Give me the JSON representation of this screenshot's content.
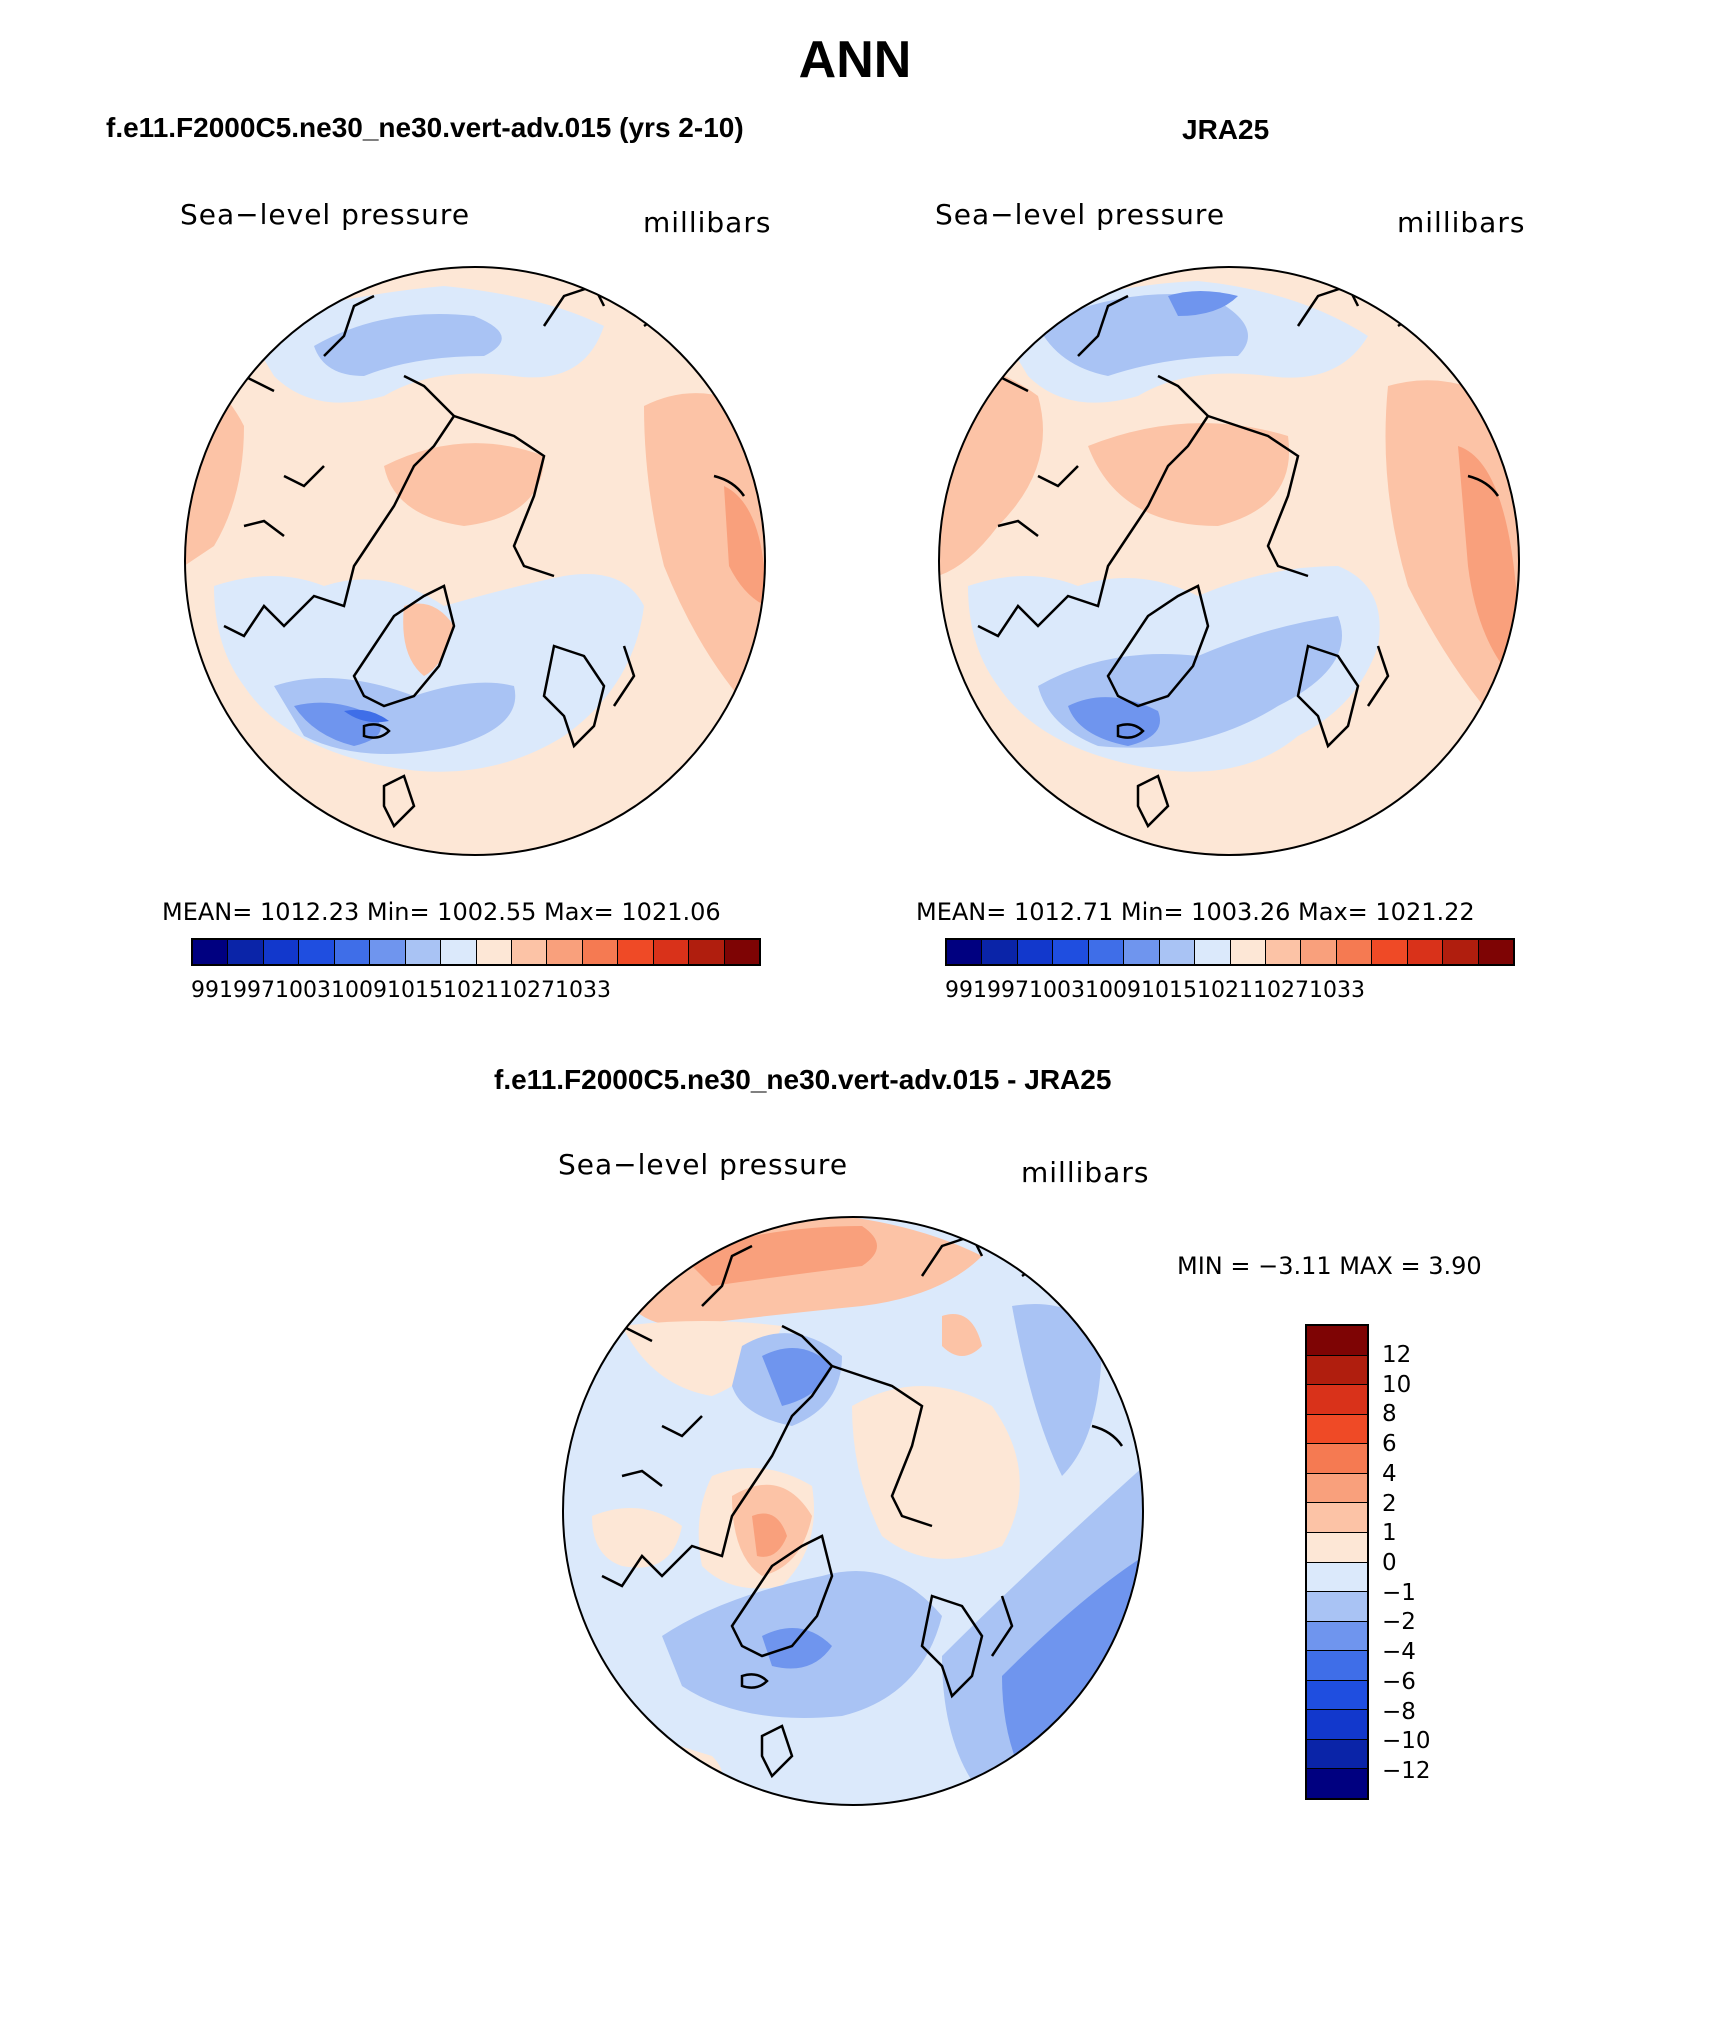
{
  "figure_title": "ANN",
  "panels": {
    "model": {
      "title": "f.e11.F2000C5.ne30_ne30.vert-adv.015 (yrs 2-10)",
      "variable": "Sea−level pressure",
      "units": "millibars",
      "stats": "MEAN=  1012.23   Min=  1002.55   Max=  1021.06"
    },
    "obs": {
      "title": "JRA25",
      "variable": "Sea−level pressure",
      "units": "millibars",
      "stats": "MEAN=  1012.71   Min=  1003.26   Max=  1021.22"
    },
    "diff": {
      "title": "f.e11.F2000C5.ne30_ne30.vert-adv.015 - JRA25",
      "variable": "Sea−level pressure",
      "units": "millibars",
      "stats": "MIN =   −3.11  MAX =     3.90"
    }
  },
  "abs_colorbar": {
    "colors": [
      "#000080",
      "#0a24a8",
      "#1238cc",
      "#1f4ee0",
      "#3f6ee8",
      "#6f95ee",
      "#a9c3f4",
      "#dbe9fb",
      "#fde7d6",
      "#fcc3a6",
      "#f9a07c",
      "#f57a52",
      "#ef4a26",
      "#d9321a",
      "#b01e0e",
      "#7e0404"
    ],
    "ticks": [
      "991",
      "997",
      "1003",
      "1009",
      "1015",
      "1021",
      "1027",
      "1033"
    ]
  },
  "diff_colorbar": {
    "colors_top_to_bottom": [
      "#7e0404",
      "#b01e0e",
      "#d9321a",
      "#ef4a26",
      "#f57a52",
      "#f9a07c",
      "#fcc3a6",
      "#fde7d6",
      "#dbe9fb",
      "#a9c3f4",
      "#6f95ee",
      "#3f6ee8",
      "#1f4ee0",
      "#1238cc",
      "#0a24a8",
      "#000080"
    ],
    "labels": [
      "12",
      "10",
      "8",
      "6",
      "4",
      "2",
      "1",
      "0",
      "−1",
      "−2",
      "−4",
      "−6",
      "−8",
      "−10",
      "−12"
    ]
  }
}
